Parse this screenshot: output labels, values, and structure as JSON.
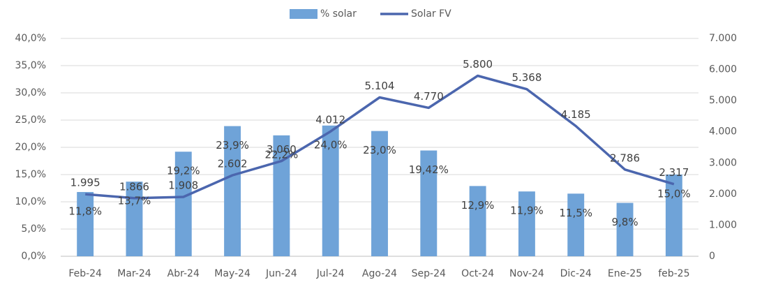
{
  "chart_data": {
    "type": "bar",
    "categories": [
      "Feb-24",
      "Mar-24",
      "Abr-24",
      "May-24",
      "Jun-24",
      "Jul-24",
      "Ago-24",
      "Sep-24",
      "Oct-24",
      "Nov-24",
      "Dic-24",
      "Ene-25",
      "feb-25"
    ],
    "series": [
      {
        "name": "% solar",
        "type": "bar",
        "color": "#6fa3d8",
        "values": [
          11.8,
          13.7,
          19.2,
          23.9,
          22.2,
          24.0,
          23.0,
          19.42,
          12.9,
          11.9,
          11.5,
          9.8,
          15.0
        ],
        "value_labels": [
          "11,8%",
          "13,7%",
          "19,2%",
          "23,9%",
          "22,2%",
          "24,0%",
          "23,0%",
          "19,42%",
          "12,9%",
          "11,9%",
          "11,5%",
          "9,8%",
          "15,0%"
        ]
      },
      {
        "name": "Solar FV",
        "type": "line",
        "axis": "y2",
        "color": "#4b66ae",
        "values": [
          1995,
          1866,
          1908,
          2602,
          3060,
          4012,
          5104,
          4770,
          5800,
          5368,
          4185,
          2786,
          2317
        ],
        "value_labels": [
          "1.995",
          "1.866",
          "1.908",
          "2.602",
          "3.060",
          "4.012",
          "5.104",
          "4.770",
          "5.800",
          "5.368",
          "4.185",
          "2.786",
          "2.317"
        ]
      }
    ],
    "ylim": [
      0,
      40
    ],
    "yticks": [
      {
        "value": 0,
        "label": "0,0%"
      },
      {
        "value": 5,
        "label": "5,0%"
      },
      {
        "value": 10,
        "label": "10,0%"
      },
      {
        "value": 15,
        "label": "15,0%"
      },
      {
        "value": 20,
        "label": "20,0%"
      },
      {
        "value": 25,
        "label": "25,0%"
      },
      {
        "value": 30,
        "label": "30,0%"
      },
      {
        "value": 35,
        "label": "35,0%"
      },
      {
        "value": 40,
        "label": "40,0%"
      }
    ],
    "y2lim": [
      0,
      7000
    ],
    "y2ticks": [
      0,
      {
        "value": 1000,
        "label": "1.000"
      },
      {
        "value": 2000,
        "label": "2.000"
      },
      {
        "value": 3000,
        "label": "3.000"
      },
      {
        "value": 4000,
        "label": "4.000"
      },
      {
        "value": 5000,
        "label": "5.000"
      },
      {
        "value": 6000,
        "label": "6.000"
      },
      {
        "value": 7000,
        "label": "7.000"
      }
    ],
    "grid": true,
    "legend": "top"
  }
}
